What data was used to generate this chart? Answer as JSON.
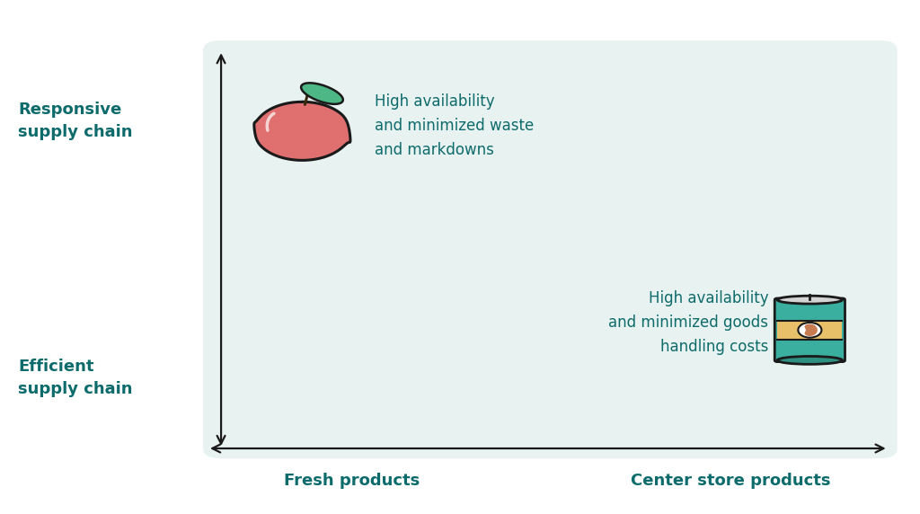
{
  "bg_color": "#ffffff",
  "box_color": "#e8f2f0",
  "text_color_dark": "#0d6b6b",
  "arrow_color": "#1a1a1a",
  "responsive_label": "Responsive\nsupply chain",
  "efficient_label": "Efficient\nsupply chain",
  "fresh_label": "Fresh products",
  "center_label": "Center store products",
  "fresh_annotation": "High availability\nand minimized waste\nand markdowns",
  "center_annotation": "High availability\nand minimized goods\nhandling costs",
  "font_size_axis_label": 13,
  "font_size_annotation": 12,
  "font_size_supply_label": 13,
  "apple_color": "#e07070",
  "apple_edge": "#1a1a1a",
  "leaf_color": "#4db885",
  "leaf_edge": "#1a1a1a",
  "stem_color": "#3a2a10",
  "can_teal": "#3aafa0",
  "can_label_color": "#e8c06a",
  "can_lid_color": "#d4d4d4",
  "can_edge": "#1a1a1a"
}
